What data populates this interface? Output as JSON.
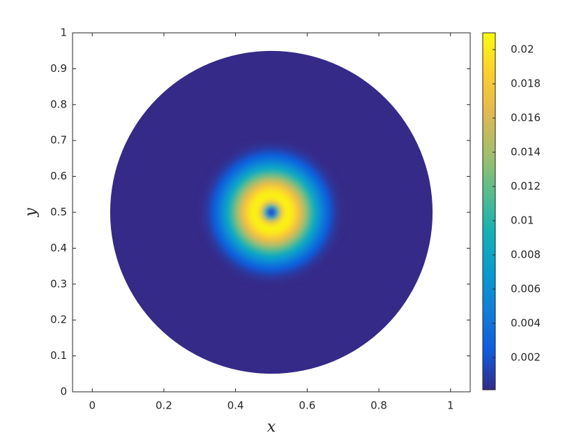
{
  "chart_data": {
    "type": "radial-heatmap",
    "xlabel": "x",
    "ylabel": "y",
    "xlim": [
      -0.055,
      1.055
    ],
    "ylim": [
      0,
      1
    ],
    "xticks": [
      0,
      0.2,
      0.4,
      0.6,
      0.8,
      1
    ],
    "yticks": [
      0,
      0.1,
      0.2,
      0.3,
      0.4,
      0.5,
      0.6,
      0.7,
      0.8,
      0.9,
      1
    ],
    "center": [
      0.5,
      0.5
    ],
    "radius": [
      0,
      0.01,
      0.02,
      0.03,
      0.04,
      0.05,
      0.06,
      0.07,
      0.08,
      0.09,
      0.1,
      0.11,
      0.12,
      0.13,
      0.14,
      0.15,
      0.16,
      0.17,
      0.18,
      0.19,
      0.2,
      0.45
    ],
    "values": [
      0.0003,
      0.003,
      0.012,
      0.018,
      0.0203,
      0.0205,
      0.0198,
      0.0185,
      0.0168,
      0.0148,
      0.0128,
      0.0108,
      0.0088,
      0.007,
      0.0053,
      0.0038,
      0.0025,
      0.0015,
      0.0008,
      0.0004,
      0.0002,
      0.00012
    ],
    "clim": [
      0.00012,
      0.02098
    ],
    "cticks": [
      0.002,
      0.004,
      0.006,
      0.008,
      0.01,
      0.012,
      0.014,
      0.016,
      0.018,
      0.02
    ],
    "colormap": [
      "#352a87",
      "#0f5cdd",
      "#127dd8",
      "#079ccf",
      "#15b1b4",
      "#59bd8c",
      "#a5be6b",
      "#e1b952",
      "#fcce2e",
      "#f9fb0e"
    ]
  }
}
